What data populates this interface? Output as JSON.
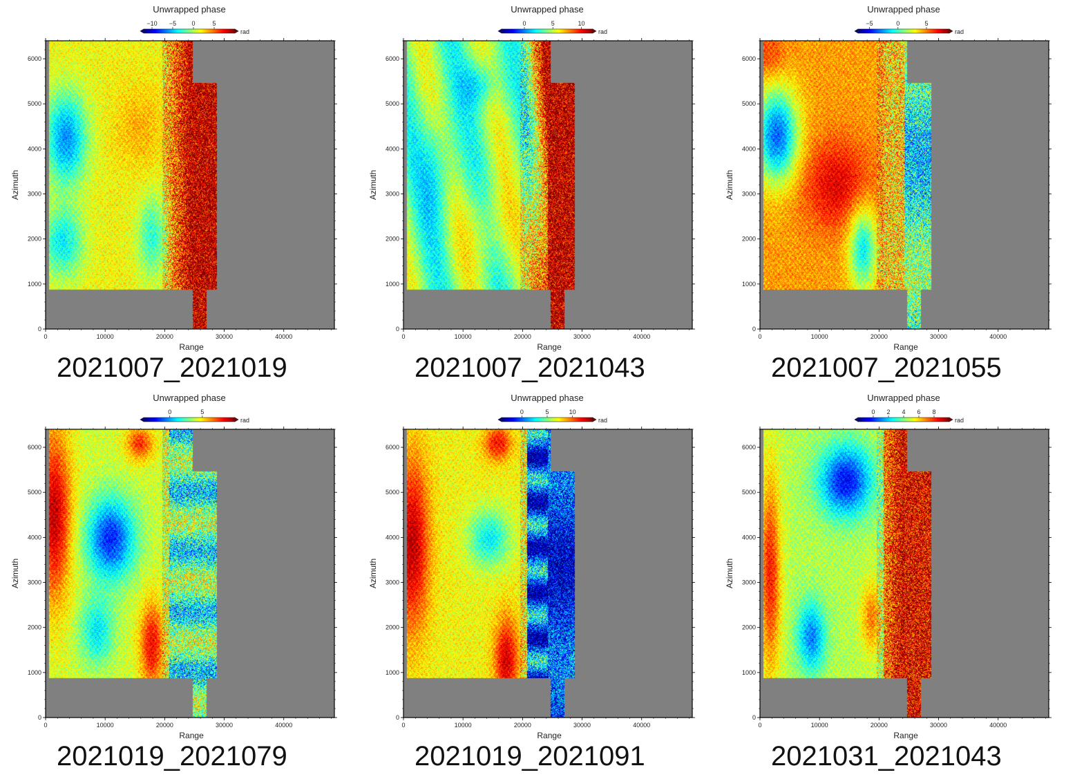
{
  "colorbar_title": "Unwrapped phase",
  "colorbar_unit": "rad",
  "colors": {
    "nodata": "#808080",
    "jet": [
      "#00007f",
      "#0000ff",
      "#0080ff",
      "#00ffff",
      "#80ff80",
      "#ffff00",
      "#ff8000",
      "#ff0000",
      "#7f0000"
    ]
  },
  "chart_data": [
    {
      "type": "heatmap",
      "title": "2021007_2021019",
      "xlabel": "Range",
      "ylabel": "Azimuth",
      "xlim": [
        0,
        48500
      ],
      "ylim": [
        0,
        6400
      ],
      "xticks": [
        0,
        10000,
        20000,
        30000,
        40000
      ],
      "yticks": [
        0,
        1000,
        2000,
        3000,
        4000,
        5000,
        6000
      ],
      "colorbar": {
        "label": "Unwrapped phase",
        "unit": "rad",
        "range": [
          -12,
          10
        ],
        "ticks": [
          -10,
          -5,
          0,
          5
        ]
      },
      "pattern": "west_blue_east_red"
    },
    {
      "type": "heatmap",
      "title": "2021007_2021043",
      "xlabel": "Range",
      "ylabel": "Azimuth",
      "xlim": [
        0,
        48500
      ],
      "ylim": [
        0,
        6400
      ],
      "xticks": [
        0,
        10000,
        20000,
        30000,
        40000
      ],
      "yticks": [
        0,
        1000,
        2000,
        3000,
        4000,
        5000,
        6000
      ],
      "colorbar": {
        "label": "Unwrapped phase",
        "unit": "rad",
        "range": [
          -4,
          12
        ],
        "ticks": [
          0,
          5,
          10
        ]
      },
      "pattern": "mixed_east_red"
    },
    {
      "type": "heatmap",
      "title": "2021007_2021055",
      "xlabel": "Range",
      "ylabel": "Azimuth",
      "xlim": [
        0,
        48500
      ],
      "ylim": [
        0,
        6400
      ],
      "xticks": [
        0,
        10000,
        20000,
        30000,
        40000
      ],
      "yticks": [
        0,
        1000,
        2000,
        3000,
        4000,
        5000,
        6000
      ],
      "colorbar": {
        "label": "Unwrapped phase",
        "unit": "rad",
        "range": [
          -7,
          9
        ],
        "ticks": [
          -5,
          0,
          5
        ]
      },
      "pattern": "central_red_east_green"
    },
    {
      "type": "heatmap",
      "title": "2021019_2021079",
      "xlabel": "Range",
      "ylabel": "Azimuth",
      "xlim": [
        0,
        48500
      ],
      "ylim": [
        0,
        6400
      ],
      "xticks": [
        0,
        10000,
        20000,
        30000,
        40000
      ],
      "yticks": [
        0,
        1000,
        2000,
        3000,
        4000,
        5000,
        6000
      ],
      "colorbar": {
        "label": "Unwrapped phase",
        "unit": "rad",
        "range": [
          -4,
          10
        ],
        "ticks": [
          0,
          5
        ]
      },
      "pattern": "west_red_center_blue"
    },
    {
      "type": "heatmap",
      "title": "2021019_2021091",
      "xlabel": "Range",
      "ylabel": "Azimuth",
      "xlim": [
        0,
        48500
      ],
      "ylim": [
        0,
        6400
      ],
      "xticks": [
        0,
        10000,
        20000,
        30000,
        40000
      ],
      "yticks": [
        0,
        1000,
        2000,
        3000,
        4000,
        5000,
        6000
      ],
      "colorbar": {
        "label": "Unwrapped phase",
        "unit": "rad",
        "range": [
          -4,
          14
        ],
        "ticks": [
          0,
          5,
          10
        ]
      },
      "pattern": "west_red_east_blue"
    },
    {
      "type": "heatmap",
      "title": "2021031_2021043",
      "xlabel": "Range",
      "ylabel": "Azimuth",
      "xlim": [
        0,
        48500
      ],
      "ylim": [
        0,
        6400
      ],
      "xticks": [
        0,
        10000,
        20000,
        30000,
        40000
      ],
      "yticks": [
        0,
        1000,
        2000,
        3000,
        4000,
        5000,
        6000
      ],
      "colorbar": {
        "label": "Unwrapped phase",
        "unit": "rad",
        "range": [
          -2,
          10
        ],
        "ticks": [
          0,
          2,
          4,
          6,
          8
        ]
      },
      "pattern": "north_blue_east_red"
    }
  ]
}
